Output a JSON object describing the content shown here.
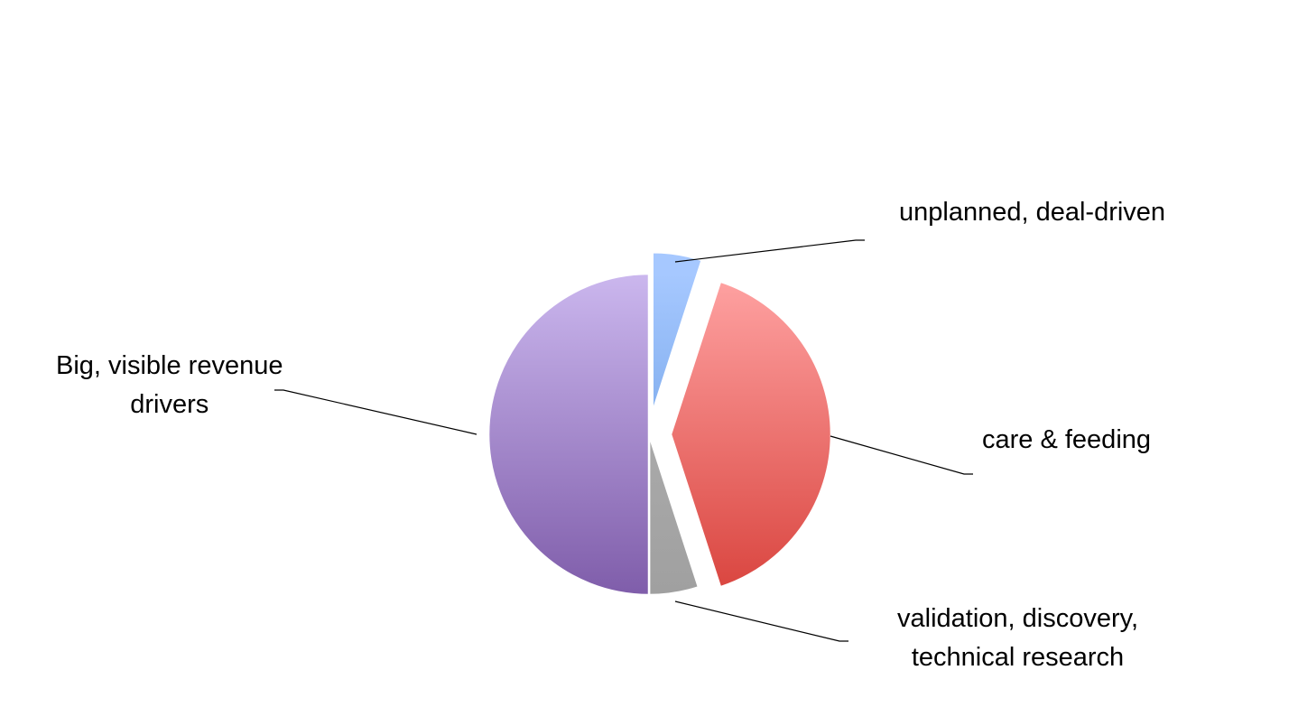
{
  "chart_data": {
    "type": "pie",
    "title": "",
    "start": "12 o'clock, clockwise",
    "slices": [
      {
        "label_lines": [
          "unplanned, deal-driven"
        ],
        "value": 5,
        "color_top": "#a6c8ff",
        "color_bottom": "#5b93dc",
        "exploded": true
      },
      {
        "label_lines": [
          "care & feeding"
        ],
        "value": 40,
        "color_top": "#ffa3a3",
        "color_bottom": "#d9443e",
        "exploded": true
      },
      {
        "label_lines": [
          "validation, discovery,",
          "technical research"
        ],
        "value": 5,
        "color_top": "#b3b3b3",
        "color_bottom": "#a0a0a0",
        "exploded": false
      },
      {
        "label_lines": [
          "Big, visible revenue",
          "drivers"
        ],
        "value": 50,
        "color_top": "#cbb7ee",
        "color_bottom": "#7f5daa",
        "exploded": false
      }
    ],
    "legend": "none",
    "label_style": "outside labels with leader lines"
  }
}
